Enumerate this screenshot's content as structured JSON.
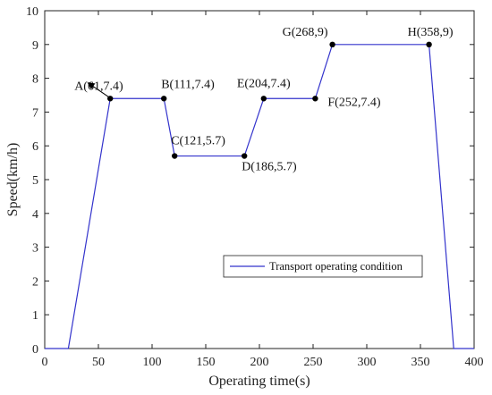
{
  "chart_data": {
    "type": "line",
    "xlabel": "Operating time(s)",
    "ylabel": "Speed(km/h)",
    "xlim": [
      0,
      400
    ],
    "ylim": [
      0,
      10
    ],
    "xticks": [
      0,
      50,
      100,
      150,
      200,
      250,
      300,
      350,
      400
    ],
    "yticks": [
      0,
      1,
      2,
      3,
      4,
      5,
      6,
      7,
      8,
      9,
      10
    ],
    "grid": false,
    "legend_position": "center-right",
    "series": [
      {
        "name": "Transport operating condition",
        "color": "#3333cc",
        "x": [
          0,
          22,
          61,
          111,
          121,
          186,
          204,
          252,
          268,
          358,
          381,
          400
        ],
        "y": [
          0,
          0,
          7.4,
          7.4,
          5.7,
          5.7,
          7.4,
          7.4,
          9,
          9,
          0,
          0
        ]
      }
    ],
    "annotations": [
      {
        "label": "A(61,7.4)",
        "x": 61,
        "y": 7.4,
        "arrow": true
      },
      {
        "label": "B(111,7.4)",
        "x": 111,
        "y": 7.4
      },
      {
        "label": "C(121,5.7)",
        "x": 121,
        "y": 5.7
      },
      {
        "label": "D(186,5.7)",
        "x": 186,
        "y": 5.7
      },
      {
        "label": "E(204,7.4)",
        "x": 204,
        "y": 7.4
      },
      {
        "label": "F(252,7.4)",
        "x": 252,
        "y": 7.4
      },
      {
        "label": "G(268,9)",
        "x": 268,
        "y": 9
      },
      {
        "label": "H(358,9)",
        "x": 358,
        "y": 9
      }
    ]
  }
}
